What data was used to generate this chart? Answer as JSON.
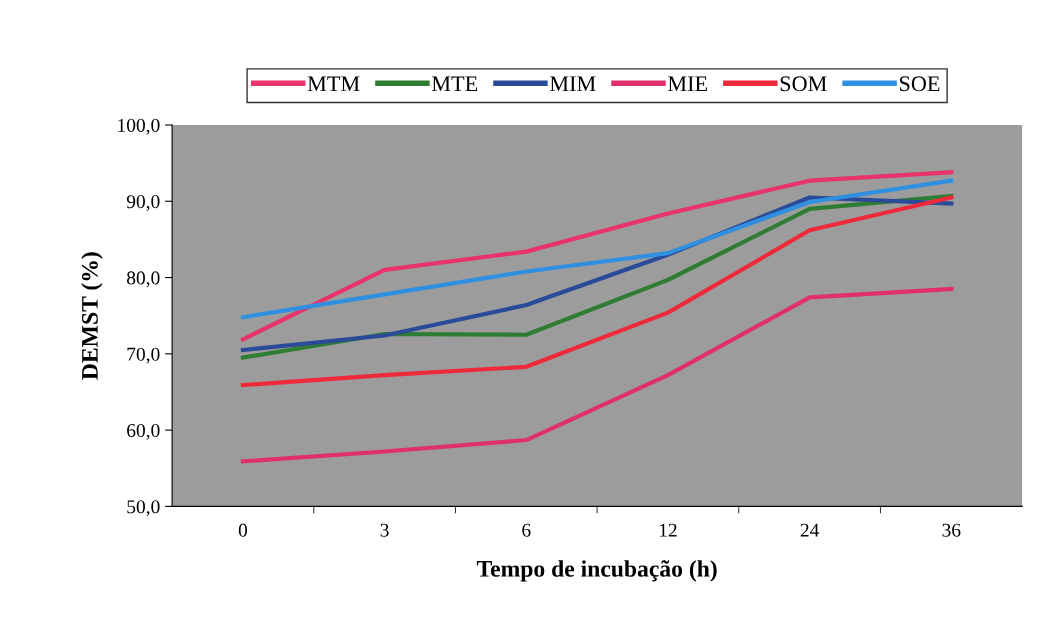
{
  "chart_data": {
    "type": "line",
    "xlabel": "Tempo de incubação (h)",
    "ylabel": "DEMST (%)",
    "categories": [
      "0",
      "3",
      "6",
      "12",
      "24",
      "36"
    ],
    "series": [
      {
        "name": "MTM",
        "color": "#e8336b",
        "values": [
          71.9,
          81.0,
          83.4,
          88.4,
          92.7,
          93.8
        ]
      },
      {
        "name": "MTE",
        "color": "#2e7d32",
        "values": [
          69.5,
          72.6,
          72.5,
          79.7,
          89.0,
          90.7
        ]
      },
      {
        "name": "MIM",
        "color": "#2a4a9a",
        "values": [
          70.5,
          72.4,
          76.4,
          83.0,
          90.5,
          89.7
        ]
      },
      {
        "name": "MIE",
        "color": "#e0306a",
        "values": [
          55.9,
          57.2,
          58.7,
          67.2,
          77.4,
          78.5
        ]
      },
      {
        "name": "SOM",
        "color": "#ee2a3a",
        "values": [
          65.9,
          67.2,
          68.3,
          75.4,
          86.2,
          90.5
        ]
      },
      {
        "name": "SOE",
        "color": "#2f8fe0",
        "values": [
          74.8,
          77.8,
          80.8,
          83.2,
          89.9,
          92.7
        ]
      }
    ],
    "ylim": [
      50,
      100
    ],
    "yticks": [
      {
        "value": 50,
        "label": "50,0"
      },
      {
        "value": 60,
        "label": "60,0"
      },
      {
        "value": 70,
        "label": "70,0"
      },
      {
        "value": 80,
        "label": "80,0"
      },
      {
        "value": 90,
        "label": "90,0"
      },
      {
        "value": 100,
        "label": "100,0"
      }
    ],
    "grid": false,
    "legend": "top",
    "marker": "none",
    "line_style": "solid"
  }
}
